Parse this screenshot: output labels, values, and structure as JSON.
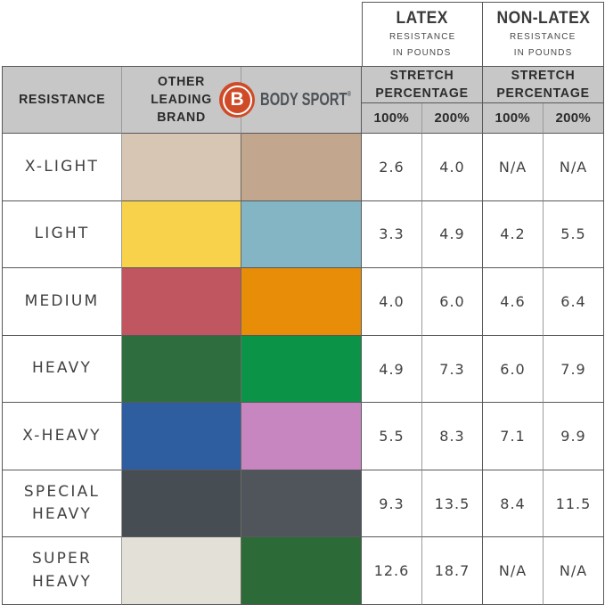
{
  "colors": {
    "header_bg": "#c7c7c7",
    "grid_dark": "#58585a",
    "grid_light": "#9b9b9b",
    "logo_orange": "#cf4b27",
    "logo_text_gray": "#4d5358"
  },
  "top_headers": {
    "latex": {
      "title": "LATEX",
      "sub1": "RESISTANCE",
      "sub2": "IN POUNDS"
    },
    "non_latex": {
      "title": "NON-LATEX",
      "sub1": "RESISTANCE",
      "sub2": "IN POUNDS"
    }
  },
  "header": {
    "resistance": "RESISTANCE",
    "other_brand_lines": [
      "OTHER",
      "LEADING",
      "BRAND"
    ],
    "brand": {
      "b": "B",
      "name": "BODY SPORT",
      "reg": "®"
    },
    "stretch_lines": [
      "STRETCH",
      "PERCENTAGE"
    ],
    "pct_100": "100%",
    "pct_200": "200%"
  },
  "rows": [
    {
      "label": "X-LIGHT",
      "other_color": "#d8c6b4",
      "bodysport_color": "#c2a68d",
      "values": [
        "2.6",
        "4.0",
        "N/A",
        "N/A"
      ]
    },
    {
      "label": "LIGHT",
      "other_color": "#f8d24b",
      "bodysport_color": "#84b5c5",
      "values": [
        "3.3",
        "4.9",
        "4.2",
        "5.5"
      ]
    },
    {
      "label": "MEDIUM",
      "other_color": "#c05660",
      "bodysport_color": "#e88d07",
      "values": [
        "4.0",
        "6.0",
        "4.6",
        "6.4"
      ]
    },
    {
      "label": "HEAVY",
      "other_color": "#2e6e3e",
      "bodysport_color": "#0b9347",
      "values": [
        "4.9",
        "7.3",
        "6.0",
        "7.9"
      ]
    },
    {
      "label": "X-HEAVY",
      "other_color": "#2e5da0",
      "bodysport_color": "#c886c1",
      "values": [
        "5.5",
        "8.3",
        "7.1",
        "9.9"
      ]
    },
    {
      "label": "SPECIAL HEAVY",
      "other_color": "#474e53",
      "bodysport_color": "#4f555a",
      "values": [
        "9.3",
        "13.5",
        "8.4",
        "11.5"
      ]
    },
    {
      "label": "SUPER HEAVY",
      "other_color": "#e3e0d8",
      "bodysport_color": "#2c6b38",
      "values": [
        "12.6",
        "18.7",
        "N/A",
        "N/A"
      ]
    }
  ],
  "chart_data": {
    "type": "table",
    "title": "Resistance band comparison: Body Sport vs Other Leading Brand",
    "columns": [
      "RESISTANCE",
      "OTHER LEADING BRAND (band color)",
      "BODY SPORT (band color)",
      "LATEX 100%",
      "LATEX 200%",
      "NON-LATEX 100%",
      "NON-LATEX 200%"
    ],
    "units": "resistance in pounds",
    "rows": [
      [
        "X-LIGHT",
        "#d8c6b4",
        "#c2a68d",
        "2.6",
        "4.0",
        "N/A",
        "N/A"
      ],
      [
        "LIGHT",
        "#f8d24b",
        "#84b5c5",
        "3.3",
        "4.9",
        "4.2",
        "5.5"
      ],
      [
        "MEDIUM",
        "#c05660",
        "#e88d07",
        "4.0",
        "6.0",
        "4.6",
        "6.4"
      ],
      [
        "HEAVY",
        "#2e6e3e",
        "#0b9347",
        "4.9",
        "7.3",
        "6.0",
        "7.9"
      ],
      [
        "X-HEAVY",
        "#2e5da0",
        "#c886c1",
        "5.5",
        "8.3",
        "7.1",
        "9.9"
      ],
      [
        "SPECIAL HEAVY",
        "#474e53",
        "#4f555a",
        "9.3",
        "13.5",
        "8.4",
        "11.5"
      ],
      [
        "SUPER HEAVY",
        "#e3e0d8",
        "#2c6b38",
        "12.6",
        "18.7",
        "N/A",
        "N/A"
      ]
    ]
  }
}
